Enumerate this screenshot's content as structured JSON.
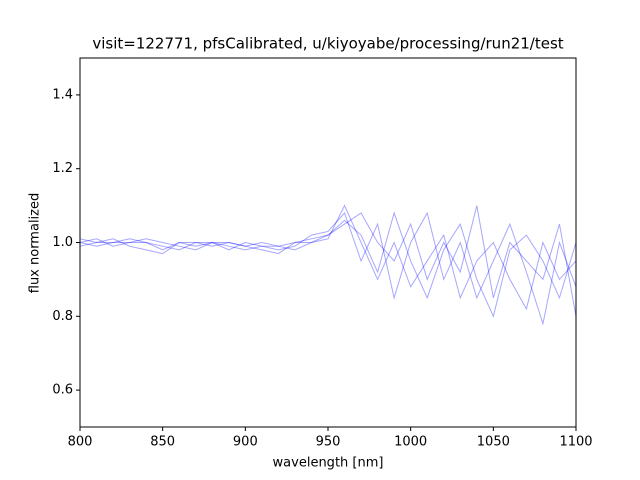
{
  "chart_data": {
    "type": "line",
    "title": "visit=122771, pfsCalibrated, u/kiyoyabe/processing/run21/test",
    "xlabel": "wavelength [nm]",
    "ylabel": "flux normalized",
    "x": [
      800,
      810,
      820,
      830,
      840,
      850,
      860,
      870,
      880,
      890,
      900,
      910,
      920,
      930,
      940,
      950,
      960,
      970,
      980,
      990,
      1000,
      1010,
      1020,
      1030,
      1040,
      1050,
      1060,
      1070,
      1080,
      1090,
      1100
    ],
    "color": "#0000ff",
    "alpha": 0.35,
    "series": [
      {
        "values": [
          1.0,
          1.01,
          0.99,
          1.0,
          1.0,
          0.98,
          1.0,
          0.99,
          1.0,
          0.99,
          0.98,
          0.99,
          0.99,
          1.0,
          1.01,
          1.02,
          1.05,
          1.08,
          1.0,
          0.95,
          1.05,
          0.9,
          1.0,
          0.92,
          1.1,
          0.85,
          1.0,
          0.95,
          0.9,
          1.05,
          0.8
        ]
      },
      {
        "values": [
          0.99,
          1.0,
          1.01,
          0.99,
          0.98,
          0.97,
          1.0,
          1.0,
          0.99,
          1.0,
          0.99,
          0.98,
          0.97,
          1.0,
          1.0,
          1.01,
          1.1,
          1.0,
          0.9,
          1.0,
          0.88,
          0.95,
          1.02,
          0.85,
          0.95,
          1.0,
          0.9,
          0.82,
          1.0,
          0.9,
          0.95
        ]
      },
      {
        "values": [
          1.01,
          1.0,
          1.0,
          1.01,
          1.0,
          0.99,
          0.98,
          1.0,
          1.0,
          0.98,
          1.0,
          0.99,
          0.98,
          0.99,
          1.02,
          1.03,
          1.08,
          0.95,
          1.05,
          0.85,
          1.0,
          1.08,
          0.9,
          1.0,
          0.85,
          0.95,
          1.05,
          0.92,
          0.78,
          1.0,
          0.88
        ]
      },
      {
        "values": [
          1.0,
          0.99,
          1.0,
          1.0,
          1.01,
          1.0,
          0.99,
          0.98,
          1.0,
          1.0,
          0.99,
          1.0,
          0.99,
          0.98,
          1.0,
          1.02,
          1.06,
          1.02,
          0.92,
          1.08,
          0.95,
          0.85,
          0.98,
          1.05,
          0.9,
          0.8,
          0.98,
          1.02,
          0.95,
          0.85,
          1.0
        ]
      }
    ],
    "xlim": [
      800,
      1100
    ],
    "xticks": [
      800,
      850,
      900,
      950,
      1000,
      1050,
      1100
    ],
    "ylim": [
      0.5,
      1.5
    ],
    "yticks": [
      0.6,
      0.8,
      {
        "value": 1,
        "label": "1.0"
      },
      1.2,
      1.4
    ]
  }
}
